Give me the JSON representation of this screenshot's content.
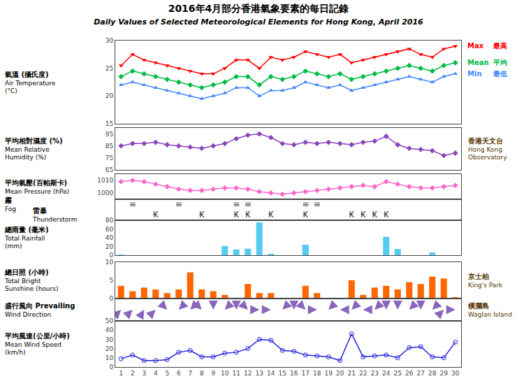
{
  "chart_data": [
    {
      "type": "line",
      "title": "2016年4月部分香港氣象要素的每日記錄",
      "subtitle": "Daily Values of Selected Meteorological Elements for Hong Kong, April 2016",
      "ylabel": "氣溫 (攝氏度)\nAir Temperature\n(°C)",
      "x": [
        1,
        2,
        3,
        4,
        5,
        6,
        7,
        8,
        9,
        10,
        11,
        12,
        13,
        14,
        15,
        16,
        17,
        18,
        19,
        20,
        21,
        22,
        23,
        24,
        25,
        26,
        27,
        28,
        29,
        30
      ],
      "xlim": [
        0.5,
        30.5
      ],
      "ylim": [
        15,
        30
      ],
      "yticks": [
        15,
        20,
        25,
        30
      ],
      "grid": false,
      "tick_labels": "y",
      "series": [
        {
          "name": "Max",
          "label": "最高",
          "color": "#FF0000",
          "marker": "triangle-down",
          "values": [
            25.5,
            27.5,
            26.5,
            26.0,
            25.5,
            25.0,
            24.5,
            24.0,
            24.0,
            25.0,
            26.5,
            26.5,
            25.0,
            27.0,
            26.5,
            27.0,
            28.0,
            27.5,
            27.0,
            27.5,
            26.0,
            26.5,
            27.0,
            27.5,
            28.0,
            28.5,
            27.5,
            27.0,
            28.5,
            29.0
          ]
        },
        {
          "name": "Mean",
          "label": "平均",
          "color": "#00BB44",
          "marker": "diamond",
          "values": [
            23.5,
            24.5,
            24.0,
            23.5,
            23.0,
            22.5,
            22.0,
            21.5,
            22.0,
            22.5,
            23.5,
            23.5,
            22.0,
            23.5,
            23.0,
            23.5,
            24.5,
            24.0,
            23.5,
            24.0,
            23.0,
            23.5,
            24.0,
            24.5,
            25.0,
            25.5,
            25.0,
            24.5,
            25.5,
            26.0
          ]
        },
        {
          "name": "Min",
          "label": "最低",
          "color": "#4488FF",
          "marker": "triangle-up",
          "values": [
            22.0,
            22.5,
            22.0,
            21.5,
            21.0,
            20.5,
            20.0,
            19.5,
            20.0,
            20.5,
            21.5,
            21.5,
            20.0,
            21.0,
            21.0,
            21.5,
            22.5,
            22.0,
            21.5,
            22.0,
            21.0,
            21.5,
            22.0,
            22.5,
            23.0,
            23.5,
            23.0,
            22.5,
            23.5,
            24.0
          ]
        }
      ]
    },
    {
      "type": "line",
      "ylabel": "平均相對濕度 (%)\nMean Relative\nHumidity (%)",
      "x": [
        1,
        2,
        3,
        4,
        5,
        6,
        7,
        8,
        9,
        10,
        11,
        12,
        13,
        14,
        15,
        16,
        17,
        18,
        19,
        20,
        21,
        22,
        23,
        24,
        25,
        26,
        27,
        28,
        29,
        30
      ],
      "xlim": [
        0.5,
        30.5
      ],
      "ylim": [
        65,
        100
      ],
      "yticks": [
        65,
        75,
        85,
        95
      ],
      "grid": false,
      "tick_labels": "y",
      "series": [
        {
          "color": "#8844BB",
          "marker": "diamond",
          "values": [
            85,
            87,
            87,
            88,
            86,
            85,
            84,
            83,
            85,
            87,
            91,
            94,
            95,
            92,
            87,
            86,
            88,
            87,
            88,
            87,
            86,
            88,
            89,
            93,
            86,
            83,
            82,
            81,
            77,
            79
          ]
        }
      ],
      "annotations": [
        {
          "text": "香港天文台\nHong Kong\nObservatory",
          "color": "#553300"
        }
      ]
    },
    {
      "type": "line",
      "ylabel": "平均氣壓(百帕斯卡)\nMean Pressure (hPa)",
      "x": [
        1,
        2,
        3,
        4,
        5,
        6,
        7,
        8,
        9,
        10,
        11,
        12,
        13,
        14,
        15,
        16,
        17,
        18,
        19,
        20,
        21,
        22,
        23,
        24,
        25,
        26,
        27,
        28,
        29,
        30
      ],
      "xlim": [
        0.5,
        30.5
      ],
      "ylim": [
        995,
        1015
      ],
      "yticks": [
        1000,
        1010
      ],
      "grid": false,
      "tick_labels": "y",
      "series": [
        {
          "color": "#FF66CC",
          "marker": "diamond",
          "values": [
            1009,
            1010,
            1009,
            1007,
            1005,
            1003,
            1002,
            1002,
            1003,
            1004,
            1004,
            1003,
            1001,
            1000,
            999,
            1000,
            1001,
            1002,
            1003,
            1004,
            1005,
            1006,
            1005,
            1009,
            1007,
            1005,
            1004,
            1004,
            1005,
            1006
          ]
        }
      ]
    },
    {
      "type": "text",
      "xlim": [
        0.5,
        30.5
      ],
      "grid": false,
      "tick_labels": false,
      "series": [
        {
          "name": "霧\nFog",
          "text": "≡",
          "color": "#444444",
          "x": [
            2,
            6,
            11,
            12,
            17,
            18
          ]
        },
        {
          "name": "雷暴\nThunderstorm",
          "text": "₭",
          "color": "#333333",
          "x": [
            4,
            8,
            11,
            12,
            14,
            17,
            21,
            22,
            23,
            24
          ]
        }
      ]
    },
    {
      "type": "bar",
      "ylabel": "總雨量 (毫米)\nTotal Rainfall\n(mm)",
      "x": [
        1,
        2,
        3,
        4,
        5,
        6,
        7,
        8,
        9,
        10,
        11,
        12,
        13,
        14,
        15,
        16,
        17,
        18,
        19,
        20,
        21,
        22,
        23,
        24,
        25,
        26,
        27,
        28,
        29,
        30
      ],
      "values": [
        1,
        0,
        0,
        0,
        0,
        0,
        0,
        0,
        0,
        21,
        13,
        15,
        75,
        2,
        0,
        0,
        24,
        0,
        0,
        0,
        0,
        0,
        0,
        42,
        14,
        0,
        0,
        6,
        0,
        0
      ],
      "color": "#55CCEE",
      "xlim": [
        0.5,
        30.5
      ],
      "ylim": [
        0,
        80
      ],
      "yticks": [
        0,
        20,
        40,
        60,
        80
      ],
      "grid": false,
      "tick_labels": "y"
    },
    {
      "type": "bar",
      "ylabel": "總日照 (小時)\nTotal Bright\nSunshine (hours)",
      "x": [
        1,
        2,
        3,
        4,
        5,
        6,
        7,
        8,
        9,
        10,
        11,
        12,
        13,
        14,
        15,
        16,
        17,
        18,
        19,
        20,
        21,
        22,
        23,
        24,
        25,
        26,
        27,
        28,
        29,
        30
      ],
      "values": [
        3.5,
        2.0,
        3.0,
        2.5,
        1.5,
        2.5,
        7.2,
        2.5,
        2.0,
        1.0,
        0,
        4.0,
        1.5,
        1.5,
        0,
        0,
        3.5,
        1.5,
        0.1,
        0,
        5.0,
        1.0,
        3.0,
        3.5,
        2.5,
        4.5,
        4.0,
        6.0,
        5.5,
        0.2
      ],
      "color": "#FF6600",
      "xlim": [
        0.5,
        30.5
      ],
      "ylim": [
        0,
        10
      ],
      "yticks": [
        0,
        5,
        10
      ],
      "grid": false,
      "tick_labels": "y",
      "annotations": [
        {
          "text": "京士柏\nKing's Park",
          "color": "#553300"
        }
      ]
    },
    {
      "type": "arrows",
      "ylabel": "盛行風向 Prevailing\nWind Direction",
      "x": [
        1,
        2,
        3,
        4,
        5,
        6,
        7,
        8,
        9,
        10,
        11,
        12,
        13,
        14,
        15,
        16,
        17,
        18,
        19,
        20,
        21,
        22,
        23,
        24,
        25,
        26,
        27,
        28,
        29,
        30
      ],
      "values": [
        225,
        225,
        210,
        225,
        315,
        45,
        45,
        315,
        360,
        45,
        360,
        315,
        270,
        270,
        45,
        360,
        315,
        270,
        45,
        90,
        45,
        90,
        45,
        0,
        0,
        45,
        0,
        45,
        225,
        270
      ],
      "color": "#8866BB",
      "marker": "arrow",
      "xlim": [
        0.5,
        30.5
      ],
      "grid": false,
      "tick_labels": false,
      "annotations": [
        {
          "text": "橫瀾島\nWaglan Island",
          "color": "#553300"
        }
      ]
    },
    {
      "type": "line",
      "ylabel": "平均風速(公里/小時)\nMean Wind Speed\n(km/h)",
      "x": [
        1,
        2,
        3,
        4,
        5,
        6,
        7,
        8,
        9,
        10,
        11,
        12,
        13,
        14,
        15,
        16,
        17,
        18,
        19,
        20,
        21,
        22,
        23,
        24,
        25,
        26,
        27,
        28,
        29,
        30
      ],
      "xlim": [
        0.5,
        30.5
      ],
      "xticks": [
        1,
        2,
        3,
        4,
        5,
        6,
        7,
        8,
        9,
        10,
        11,
        12,
        13,
        14,
        15,
        16,
        17,
        18,
        19,
        20,
        21,
        22,
        23,
        24,
        25,
        26,
        27,
        28,
        29,
        30
      ],
      "ylim": [
        0,
        50
      ],
      "yticks": [
        0,
        10,
        20,
        30,
        40,
        50
      ],
      "grid": false,
      "series": [
        {
          "color": "#2222DD",
          "marker": "circle-open",
          "values": [
            9,
            13,
            7,
            7,
            8,
            16,
            18,
            11,
            11,
            15,
            16,
            20,
            30,
            29,
            18,
            17,
            13,
            12,
            11,
            7,
            36,
            11,
            12,
            13,
            10,
            21,
            22,
            11,
            10,
            27
          ]
        }
      ]
    }
  ]
}
